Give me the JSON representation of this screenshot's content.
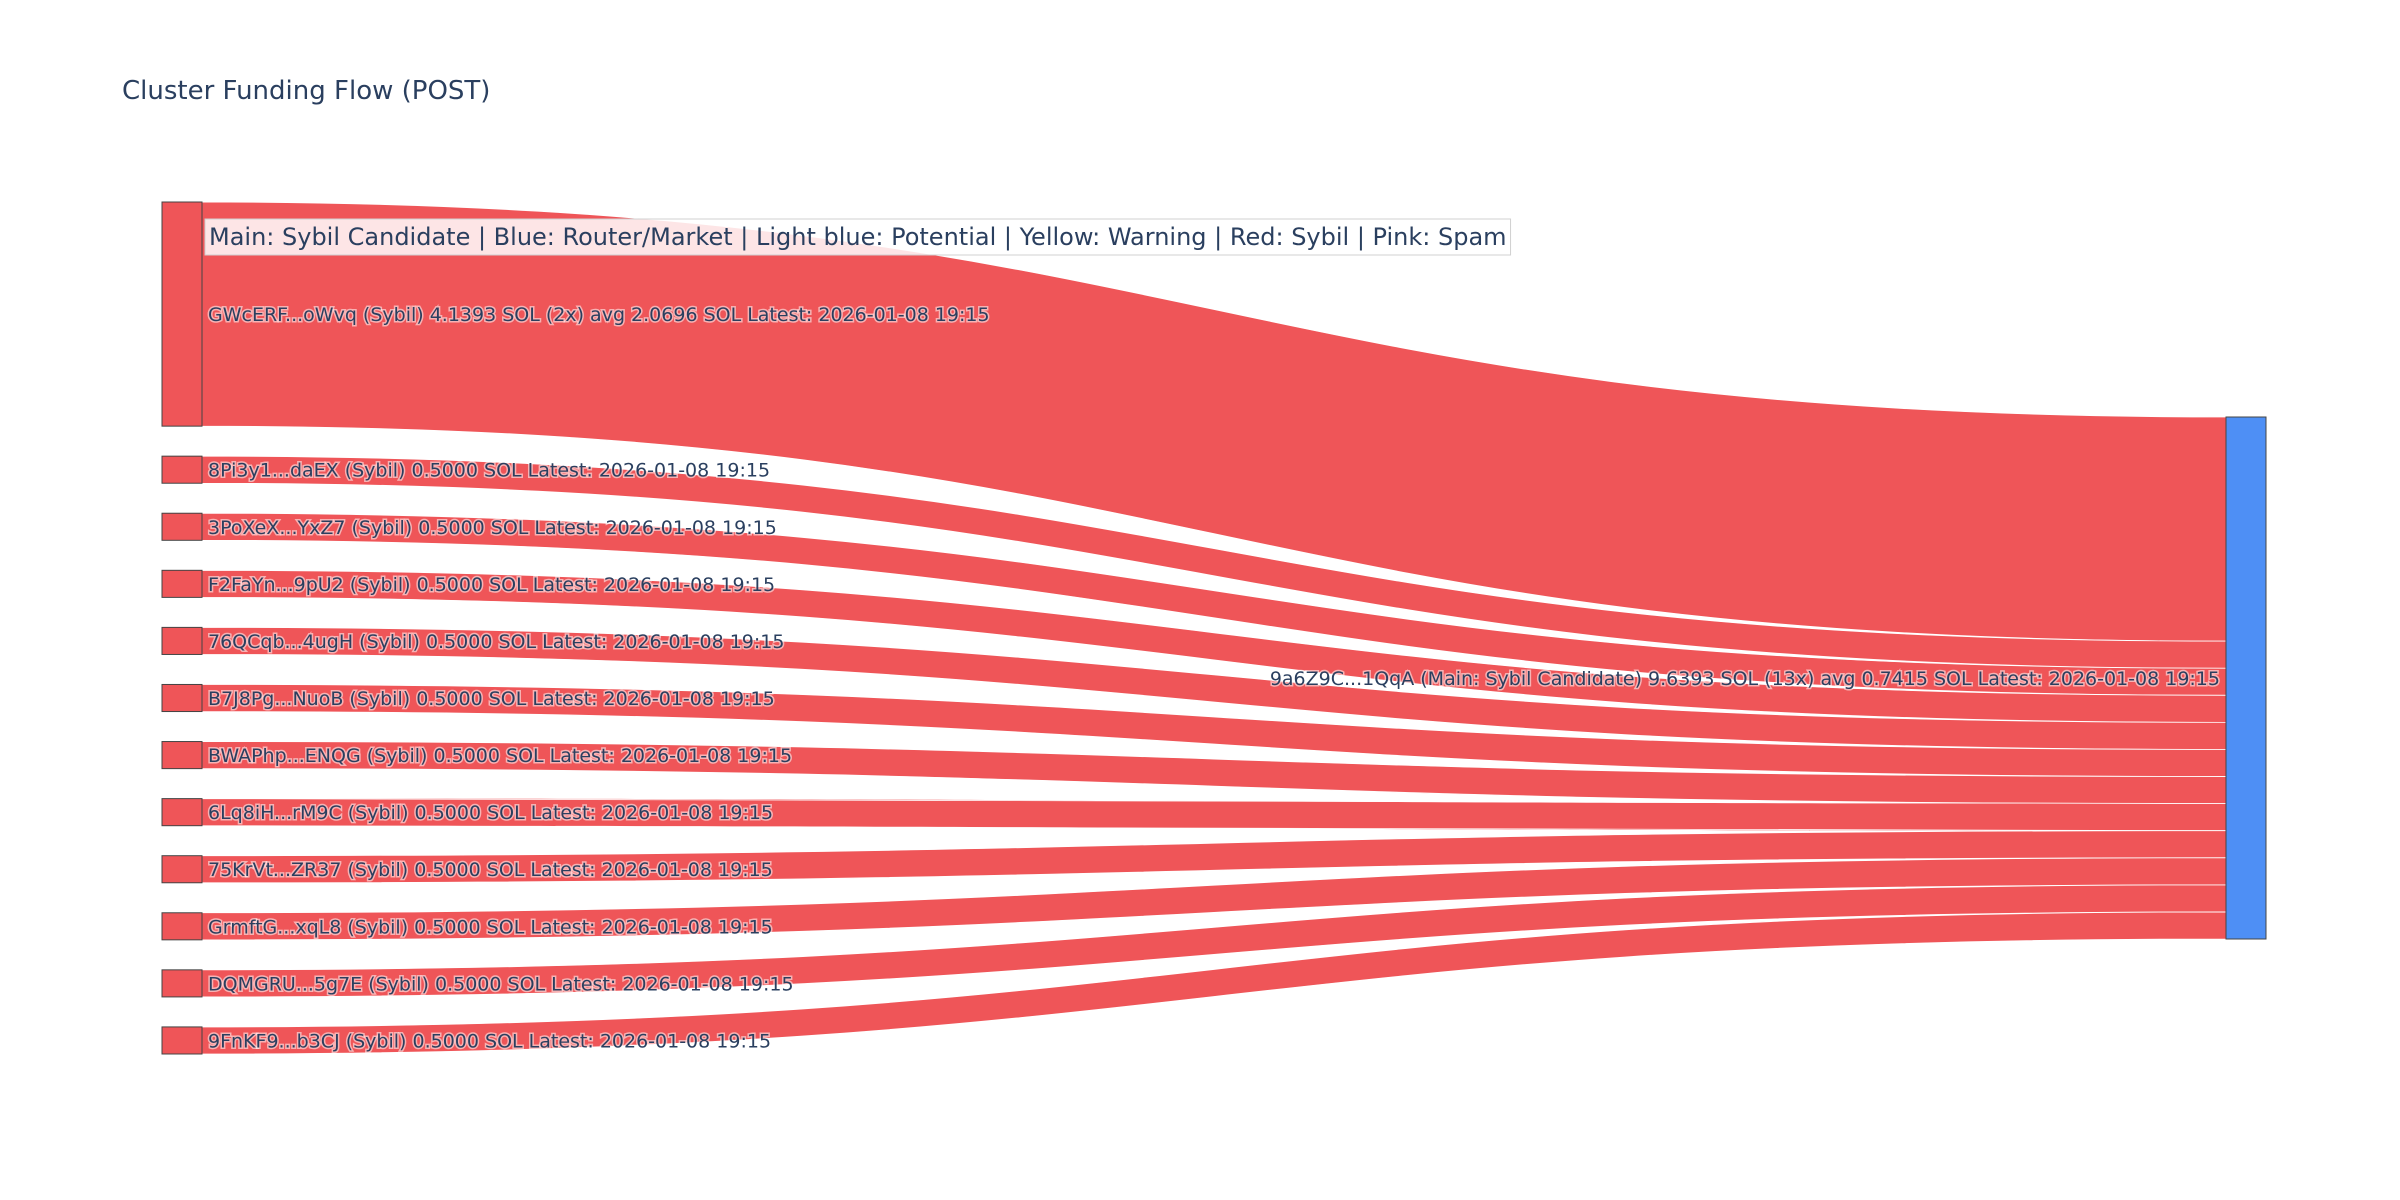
{
  "title": "Cluster Funding Flow (POST)",
  "legend_note": "Main: Sybil Candidate  |  Blue: Router/Market | Light blue: Potential | Yellow: Warning | Red: Sybil | Pink: Spam",
  "colors": {
    "sybil": "#ef5558",
    "main": "#4e8ff5",
    "link": "#ef5558",
    "text": "#2a3f5f",
    "node_border": "#444444"
  },
  "chart_data": {
    "type": "sankey",
    "nodes": [
      {
        "id": "src0",
        "label": "GWcERF...oWvq (Sybil) 4.1393 SOL (2x) avg 2.0696 SOL Latest: 2026-01-08 19:15",
        "category": "sybil"
      },
      {
        "id": "src1",
        "label": "8Pi3y1...daEX (Sybil) 0.5000 SOL Latest: 2026-01-08 19:15",
        "category": "sybil"
      },
      {
        "id": "src2",
        "label": "3PoXeX...YxZ7 (Sybil) 0.5000 SOL Latest: 2026-01-08 19:15",
        "category": "sybil"
      },
      {
        "id": "src3",
        "label": "F2FaYn...9pU2 (Sybil) 0.5000 SOL Latest: 2026-01-08 19:15",
        "category": "sybil"
      },
      {
        "id": "src4",
        "label": "76QCqb...4ugH (Sybil) 0.5000 SOL Latest: 2026-01-08 19:15",
        "category": "sybil"
      },
      {
        "id": "src5",
        "label": "B7J8Pg...NuoB (Sybil) 0.5000 SOL Latest: 2026-01-08 19:15",
        "category": "sybil"
      },
      {
        "id": "src6",
        "label": "BWAPhp...ENQG (Sybil) 0.5000 SOL Latest: 2026-01-08 19:15",
        "category": "sybil"
      },
      {
        "id": "src7",
        "label": "6Lq8iH...rM9C (Sybil) 0.5000 SOL Latest: 2026-01-08 19:15",
        "category": "sybil"
      },
      {
        "id": "src8",
        "label": "75KrVt...ZR37 (Sybil) 0.5000 SOL Latest: 2026-01-08 19:15",
        "category": "sybil"
      },
      {
        "id": "src9",
        "label": "GrmftG...xqL8 (Sybil) 0.5000 SOL Latest: 2026-01-08 19:15",
        "category": "sybil"
      },
      {
        "id": "src10",
        "label": "DQMGRU...5g7E (Sybil) 0.5000 SOL Latest: 2026-01-08 19:15",
        "category": "sybil"
      },
      {
        "id": "src11",
        "label": "9FnKF9...b3CJ (Sybil) 0.5000 SOL Latest: 2026-01-08 19:15",
        "category": "sybil"
      },
      {
        "id": "main",
        "label": "9a6Z9C...1QqA (Main: Sybil Candidate) 9.6393 SOL (13x) avg 0.7415 SOL Latest: 2026-01-08 19:15",
        "category": "main"
      }
    ],
    "links": [
      {
        "source": "src0",
        "target": "main",
        "value": 4.1393
      },
      {
        "source": "src1",
        "target": "main",
        "value": 0.5
      },
      {
        "source": "src2",
        "target": "main",
        "value": 0.5
      },
      {
        "source": "src3",
        "target": "main",
        "value": 0.5
      },
      {
        "source": "src4",
        "target": "main",
        "value": 0.5
      },
      {
        "source": "src5",
        "target": "main",
        "value": 0.5
      },
      {
        "source": "src6",
        "target": "main",
        "value": 0.5
      },
      {
        "source": "src7",
        "target": "main",
        "value": 0.5
      },
      {
        "source": "src8",
        "target": "main",
        "value": 0.5
      },
      {
        "source": "src9",
        "target": "main",
        "value": 0.5
      },
      {
        "source": "src10",
        "target": "main",
        "value": 0.5
      },
      {
        "source": "src11",
        "target": "main",
        "value": 0.5
      }
    ]
  }
}
